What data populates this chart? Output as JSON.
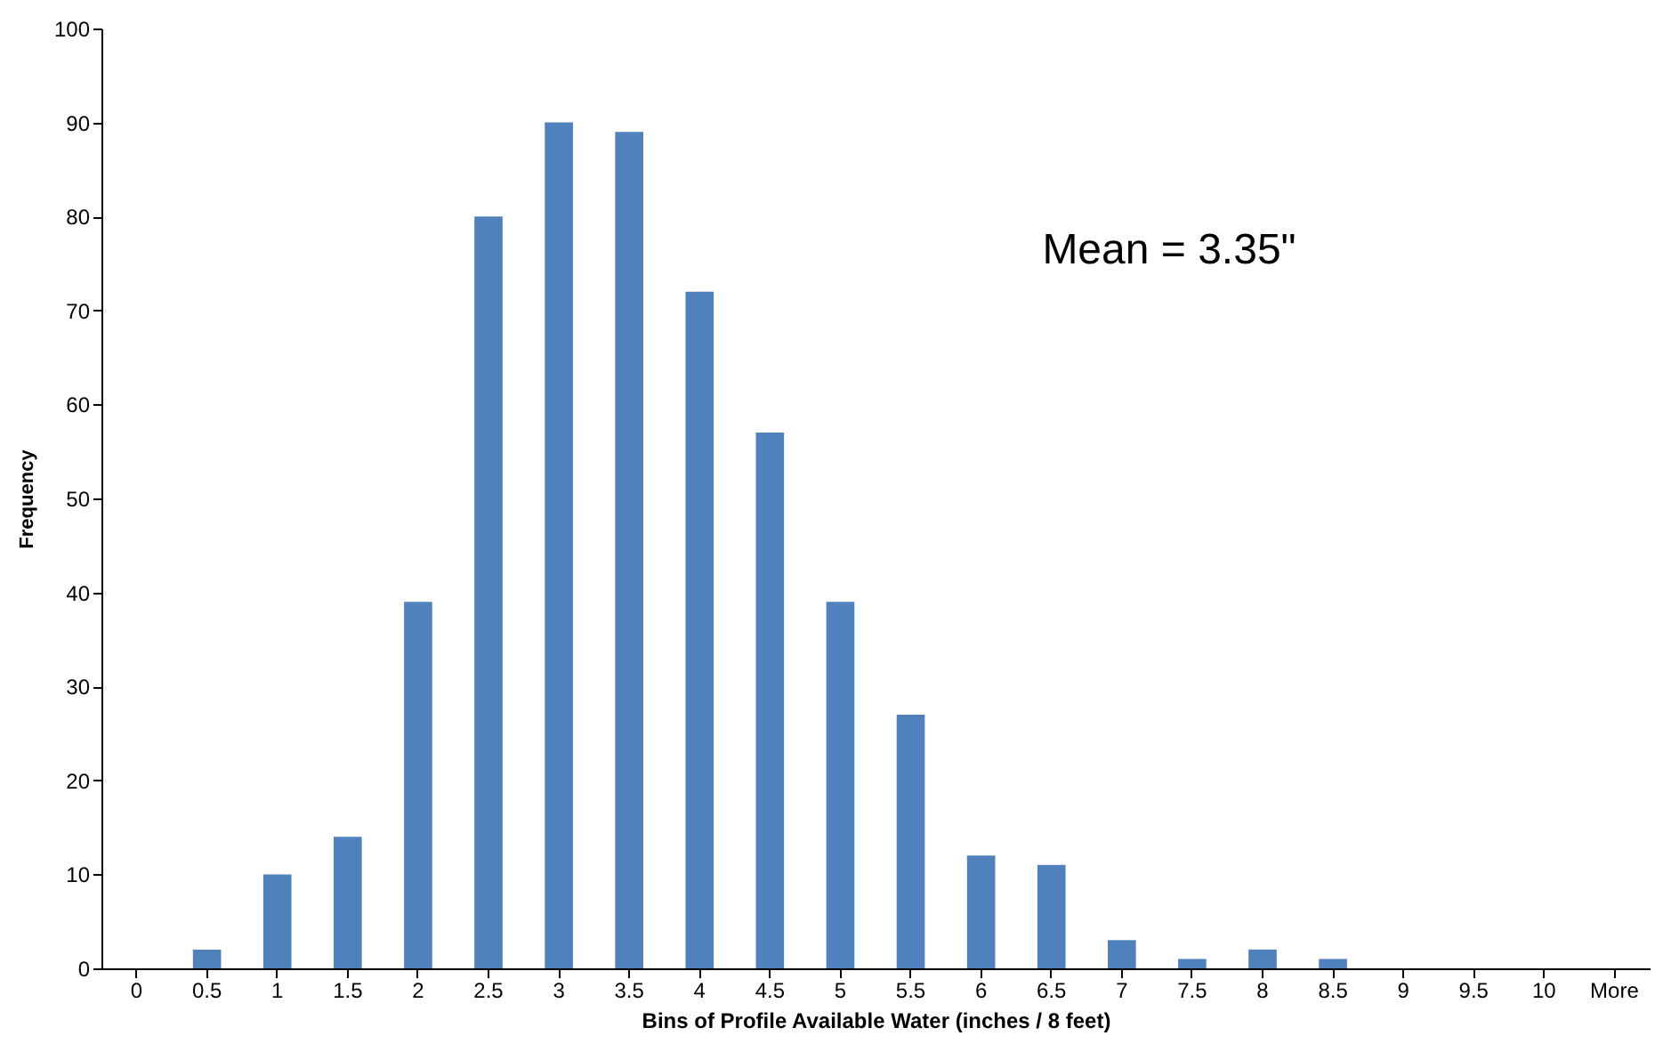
{
  "chart_data": {
    "type": "bar",
    "xlabel": "Bins of Profile Available Water (inches / 8 feet)",
    "ylabel": "Frequency",
    "categories": [
      "0",
      "0.5",
      "1",
      "1.5",
      "2",
      "2.5",
      "3",
      "3.5",
      "4",
      "4.5",
      "5",
      "5.5",
      "6",
      "6.5",
      "7",
      "7.5",
      "8",
      "8.5",
      "9",
      "9.5",
      "10",
      "More"
    ],
    "values": [
      0,
      2,
      10,
      14,
      39,
      80,
      90,
      89,
      72,
      57,
      39,
      27,
      12,
      11,
      3,
      1,
      2,
      1,
      0,
      0,
      0,
      0
    ],
    "color": "#4f81bd",
    "ylim": [
      0,
      100
    ],
    "yticks": [
      0,
      10,
      20,
      30,
      40,
      50,
      60,
      70,
      80,
      90,
      100
    ],
    "grid": false,
    "annotations": [
      "Mean = 3.35\""
    ]
  }
}
